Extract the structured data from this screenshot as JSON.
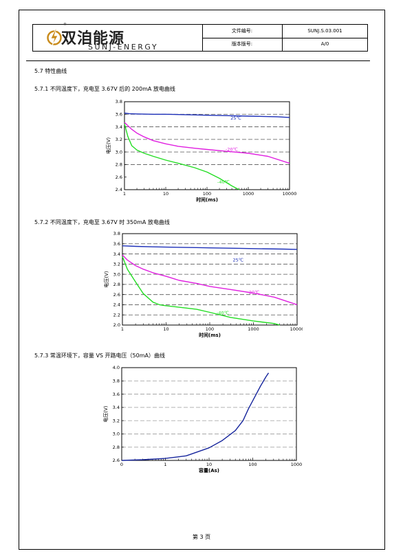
{
  "header": {
    "company_cn": "双洎能源",
    "company_en": "SUNJ-ENERGY",
    "trademark": "®",
    "doc_no_label": "文件编号:",
    "doc_no_value": "SUNJ.S.03.001",
    "version_label": "版本版号:",
    "version_value": "A/0"
  },
  "section_title": "5.7 特性曲线",
  "subsections": [
    {
      "title": "5.7.1 不同温度下，充电至 3.67V 后的 200mA 放电曲线"
    },
    {
      "title": "5.7.2 不同温度下，充电至 3.67V 时 350mA 放电曲线"
    },
    {
      "title": "5.7.3 常温环境下，容量 VS 开路电压（50mA）曲线"
    }
  ],
  "footer": {
    "page_text": "第 3 页"
  },
  "chart_data": [
    {
      "type": "line",
      "xscale": "log",
      "xlim": [
        1,
        10000
      ],
      "ylim": [
        2.4,
        3.8
      ],
      "xticks": [
        "1",
        "10",
        "100",
        "1000",
        "10000"
      ],
      "yticks": [
        "2.4",
        "2.6",
        "2.8",
        "3.0",
        "3.2",
        "3.4",
        "3.6",
        "3.8"
      ],
      "xlabel": "时间(ms)",
      "ylabel": "电压(V)",
      "gridlines": [
        2.8,
        3.0,
        3.2,
        3.4,
        3.6
      ],
      "series": [
        {
          "name": "25℃",
          "color": "#1c2fb8",
          "label_at": [
            2.7,
            3.54
          ],
          "x": [
            1,
            1.3,
            2,
            5,
            10,
            50,
            100,
            500,
            1000,
            5000,
            10000
          ],
          "y": [
            3.62,
            3.61,
            3.605,
            3.6,
            3.6,
            3.59,
            3.585,
            3.575,
            3.57,
            3.56,
            3.55
          ]
        },
        {
          "name": "-20℃",
          "color": "#e01ee0",
          "label_at": [
            2.6,
            3.04
          ],
          "x": [
            1,
            1.2,
            1.5,
            2,
            3,
            5,
            10,
            20,
            50,
            100,
            300,
            1000,
            3000,
            10000
          ],
          "y": [
            3.47,
            3.42,
            3.36,
            3.3,
            3.24,
            3.18,
            3.13,
            3.09,
            3.06,
            3.04,
            3.01,
            2.98,
            2.93,
            2.82
          ]
        },
        {
          "name": "-40℃",
          "color": "#22dd22",
          "label_at": [
            2.4,
            2.52
          ],
          "x": [
            1,
            1.2,
            1.5,
            2,
            3,
            5,
            10,
            20,
            50,
            100,
            200,
            400,
            600
          ],
          "y": [
            3.45,
            3.25,
            3.1,
            3.03,
            2.98,
            2.93,
            2.87,
            2.82,
            2.75,
            2.68,
            2.58,
            2.46,
            2.4
          ]
        }
      ]
    },
    {
      "type": "line",
      "xscale": "log",
      "xlim": [
        1,
        10000
      ],
      "ylim": [
        2.0,
        3.8
      ],
      "xticks": [
        "1",
        "10",
        "100",
        "1000",
        "10000"
      ],
      "yticks": [
        "2.0",
        "2.2",
        "2.4",
        "2.6",
        "2.8",
        "3.0",
        "3.2",
        "3.4",
        "3.6",
        "3.8"
      ],
      "xlabel": "时间(ms)",
      "ylabel": "电压(V)",
      "gridlines": [
        2.2,
        2.4,
        2.6,
        2.8,
        3.0,
        3.2,
        3.4,
        3.6
      ],
      "series": [
        {
          "name": "25℃",
          "color": "#1c2fb8",
          "label_at": [
            2.65,
            3.28
          ],
          "x": [
            1,
            2,
            5,
            10,
            50,
            100,
            500,
            1000,
            5000,
            10000
          ],
          "y": [
            3.56,
            3.55,
            3.54,
            3.535,
            3.525,
            3.52,
            3.51,
            3.505,
            3.495,
            3.49
          ]
        },
        {
          "name": "-20℃",
          "color": "#e01ee0",
          "label_at": [
            3.0,
            2.64
          ],
          "x": [
            1,
            1.3,
            2,
            3,
            5,
            10,
            20,
            50,
            100,
            300,
            1000,
            3000,
            10000
          ],
          "y": [
            3.38,
            3.28,
            3.17,
            3.1,
            3.03,
            2.96,
            2.88,
            2.82,
            2.76,
            2.7,
            2.63,
            2.55,
            2.4
          ]
        },
        {
          "name": "-40℃",
          "color": "#22dd22",
          "label_at": [
            2.3,
            2.24
          ],
          "x": [
            1,
            1.3,
            2,
            3,
            5,
            7,
            10,
            20,
            50,
            100,
            300,
            1000,
            3000,
            4000
          ],
          "y": [
            3.35,
            3.1,
            2.85,
            2.62,
            2.45,
            2.4,
            2.38,
            2.35,
            2.31,
            2.25,
            2.15,
            2.08,
            2.03,
            2.0
          ]
        }
      ]
    },
    {
      "type": "line",
      "xscale": "log",
      "xlim": [
        0,
        1000
      ],
      "ylim": [
        2.6,
        4.0
      ],
      "xticks": [
        "0",
        "1",
        "10",
        "100",
        "1000"
      ],
      "yticks": [
        "2.6",
        "2.8",
        "3.0",
        "3.2",
        "3.4",
        "3.6",
        "3.8",
        "4.0"
      ],
      "xlabel": "容量(As)",
      "ylabel": "电压(V)",
      "gridlines": [
        2.8,
        3.0,
        3.2,
        3.4,
        3.6,
        3.8
      ],
      "series": [
        {
          "name": "",
          "color": "#15249c",
          "x": [
            0.1,
            0.3,
            1,
            3,
            10,
            20,
            40,
            60,
            80,
            100,
            150,
            200,
            230
          ],
          "y": [
            2.6,
            2.61,
            2.63,
            2.67,
            2.79,
            2.9,
            3.05,
            3.2,
            3.38,
            3.5,
            3.72,
            3.86,
            3.92
          ]
        }
      ]
    }
  ]
}
